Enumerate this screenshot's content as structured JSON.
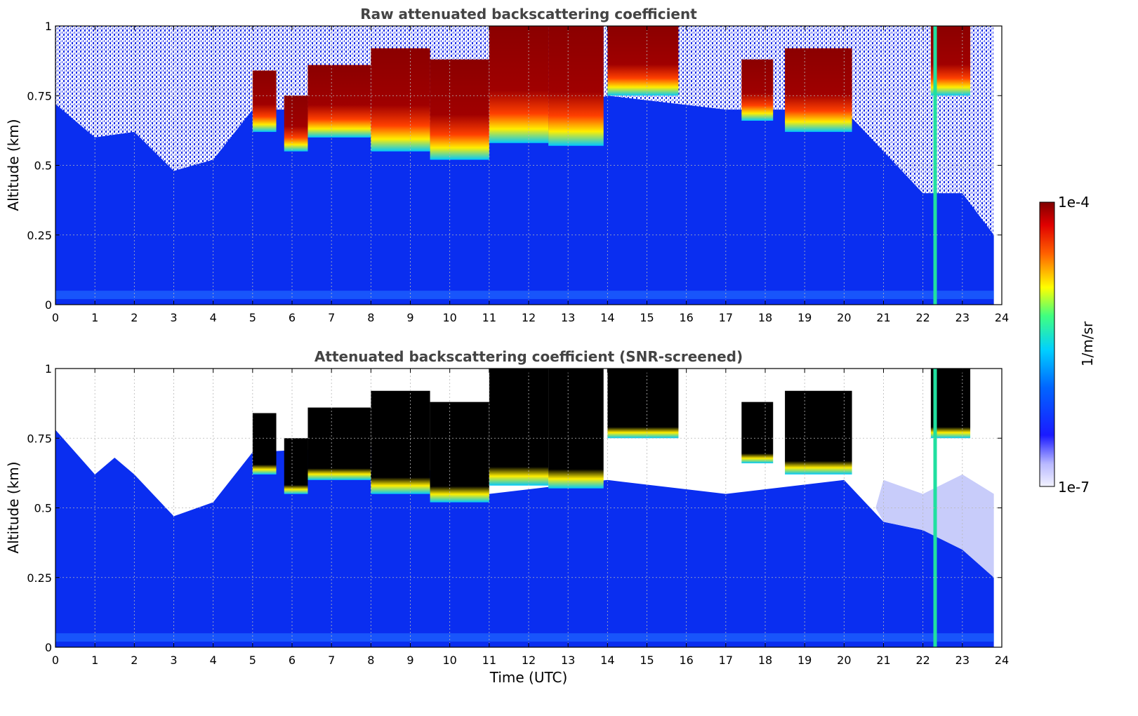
{
  "chart_data": [
    {
      "type": "heatmap",
      "title": "Raw attenuated backscattering coefficient",
      "xlabel": "",
      "ylabel": "Altitude (km)",
      "xlim": [
        0,
        24
      ],
      "ylim": [
        0,
        1
      ],
      "x_ticks": [
        "0",
        "1",
        "2",
        "3",
        "4",
        "5",
        "6",
        "7",
        "8",
        "9",
        "10",
        "11",
        "12",
        "13",
        "14",
        "15",
        "16",
        "17",
        "18",
        "19",
        "20",
        "21",
        "22",
        "23",
        "24"
      ],
      "y_ticks": [
        "0",
        "0.25",
        "0.5",
        "0.75",
        "1"
      ],
      "grid": true,
      "data_end_time": 23.8,
      "clear_sky_noise_top": [
        {
          "t": 0,
          "alt": 0.72
        },
        {
          "t": 1,
          "alt": 0.6
        },
        {
          "t": 2,
          "alt": 0.62
        },
        {
          "t": 3,
          "alt": 0.48
        },
        {
          "t": 4,
          "alt": 0.52
        },
        {
          "t": 21,
          "alt": 0.55
        },
        {
          "t": 22,
          "alt": 0.4
        },
        {
          "t": 23,
          "alt": 0.4
        },
        {
          "t": 23.8,
          "alt": 0.25
        }
      ],
      "cloud_layers": [
        {
          "t_start": 5.0,
          "t_end": 5.6,
          "base": 0.62,
          "top": 0.84
        },
        {
          "t_start": 5.8,
          "t_end": 6.4,
          "base": 0.55,
          "top": 0.75
        },
        {
          "t_start": 6.4,
          "t_end": 8.0,
          "base": 0.6,
          "top": 0.86
        },
        {
          "t_start": 8.0,
          "t_end": 9.5,
          "base": 0.55,
          "top": 0.92
        },
        {
          "t_start": 9.5,
          "t_end": 11.0,
          "base": 0.52,
          "top": 0.88
        },
        {
          "t_start": 11.0,
          "t_end": 12.5,
          "base": 0.58,
          "top": 1.0
        },
        {
          "t_start": 12.5,
          "t_end": 13.9,
          "base": 0.57,
          "top": 1.0
        },
        {
          "t_start": 14.0,
          "t_end": 15.8,
          "base": 0.75,
          "top": 1.0
        },
        {
          "t_start": 17.4,
          "t_end": 18.2,
          "base": 0.66,
          "top": 0.88
        },
        {
          "t_start": 18.5,
          "t_end": 20.2,
          "base": 0.62,
          "top": 0.92
        },
        {
          "t_start": 22.2,
          "t_end": 23.2,
          "base": 0.75,
          "top": 1.0
        }
      ],
      "precip_column": {
        "t": 22.3,
        "alt_top": 1.0
      }
    },
    {
      "type": "heatmap",
      "title": "Attenuated backscattering coefficient (SNR-screened)",
      "xlabel": "Time (UTC)",
      "ylabel": "Altitude (km)",
      "xlim": [
        0,
        24
      ],
      "ylim": [
        0,
        1
      ],
      "x_ticks": [
        "0",
        "1",
        "2",
        "3",
        "4",
        "5",
        "6",
        "7",
        "8",
        "9",
        "10",
        "11",
        "12",
        "13",
        "14",
        "15",
        "16",
        "17",
        "18",
        "19",
        "20",
        "21",
        "22",
        "23",
        "24"
      ],
      "y_ticks": [
        "0",
        "0.25",
        "0.5",
        "0.75",
        "1"
      ],
      "grid": true,
      "data_end_time": 23.8,
      "screened_signal_top": [
        {
          "t": 0,
          "alt": 0.78
        },
        {
          "t": 1,
          "alt": 0.62
        },
        {
          "t": 1.5,
          "alt": 0.68
        },
        {
          "t": 2,
          "alt": 0.62
        },
        {
          "t": 3,
          "alt": 0.47
        },
        {
          "t": 4,
          "alt": 0.52
        },
        {
          "t": 5,
          "alt": 0.7
        }
      ],
      "saturated_cores_color": "#000000"
    }
  ],
  "colorbar": {
    "label": "1/m/sr",
    "min_label": "1e-7",
    "max_label": "1e-4",
    "scale": "log",
    "min_value": 1e-07,
    "max_value": 0.0001
  },
  "colors": {
    "background": "#ffffff",
    "low_signal": "#0a2ef0",
    "cloud_top": "#8b0000",
    "grid": "#bfbfbf"
  }
}
